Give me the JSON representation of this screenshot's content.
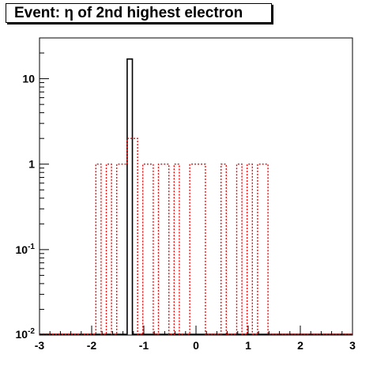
{
  "chart_data": {
    "type": "histogram",
    "title": "Event: η of 2nd highest electron",
    "xlabel": "",
    "ylabel": "",
    "xlim": [
      -3,
      3
    ],
    "ylim": [
      0.01,
      30
    ],
    "yscale": "log",
    "grid": false,
    "legend": "none",
    "x_ticks": [
      "-3",
      "-2",
      "-1",
      "0",
      "1",
      "2",
      "3"
    ],
    "y_ticks": [
      {
        "value": 0.01,
        "base": "10",
        "exp": "-2"
      },
      {
        "value": 0.1,
        "base": "10",
        "exp": "-1"
      },
      {
        "value": 1,
        "base": "1",
        "exp": ""
      },
      {
        "value": 10,
        "base": "10",
        "exp": ""
      }
    ],
    "series": [
      {
        "style": "solid",
        "color": "#000000",
        "bins": [
          {
            "x0": -3.0,
            "x1": -1.32,
            "y": 0
          },
          {
            "x0": -1.32,
            "x1": -1.22,
            "y": 17
          },
          {
            "x0": -1.22,
            "x1": 3.0,
            "y": 0
          }
        ]
      },
      {
        "style": "dashed",
        "color": "#ff0000",
        "bins": [
          {
            "x0": -3.0,
            "x1": -1.92,
            "y": 0
          },
          {
            "x0": -1.92,
            "x1": -1.82,
            "y": 1
          },
          {
            "x0": -1.82,
            "x1": -1.72,
            "y": 0
          },
          {
            "x0": -1.72,
            "x1": -1.62,
            "y": 1
          },
          {
            "x0": -1.62,
            "x1": -1.52,
            "y": 0
          },
          {
            "x0": -1.52,
            "x1": -1.42,
            "y": 1
          },
          {
            "x0": -1.42,
            "x1": -1.32,
            "y": 1
          },
          {
            "x0": -1.32,
            "x1": -1.12,
            "y": 2
          },
          {
            "x0": -1.12,
            "x1": -1.02,
            "y": 0
          },
          {
            "x0": -1.02,
            "x1": -0.82,
            "y": 1
          },
          {
            "x0": -0.82,
            "x1": -0.72,
            "y": 0
          },
          {
            "x0": -0.72,
            "x1": -0.62,
            "y": 1
          },
          {
            "x0": -0.62,
            "x1": -0.52,
            "y": 1
          },
          {
            "x0": -0.52,
            "x1": -0.42,
            "y": 0
          },
          {
            "x0": -0.42,
            "x1": -0.32,
            "y": 1
          },
          {
            "x0": -0.32,
            "x1": -0.12,
            "y": 0
          },
          {
            "x0": -0.12,
            "x1": 0.18,
            "y": 1
          },
          {
            "x0": 0.18,
            "x1": 0.48,
            "y": 0
          },
          {
            "x0": 0.48,
            "x1": 0.58,
            "y": 1
          },
          {
            "x0": 0.58,
            "x1": 0.78,
            "y": 0
          },
          {
            "x0": 0.78,
            "x1": 0.88,
            "y": 1
          },
          {
            "x0": 0.88,
            "x1": 0.98,
            "y": 0
          },
          {
            "x0": 0.98,
            "x1": 1.08,
            "y": 1
          },
          {
            "x0": 1.08,
            "x1": 1.18,
            "y": 0
          },
          {
            "x0": 1.18,
            "x1": 1.38,
            "y": 1
          },
          {
            "x0": 1.38,
            "x1": 3.0,
            "y": 0
          }
        ]
      }
    ]
  }
}
